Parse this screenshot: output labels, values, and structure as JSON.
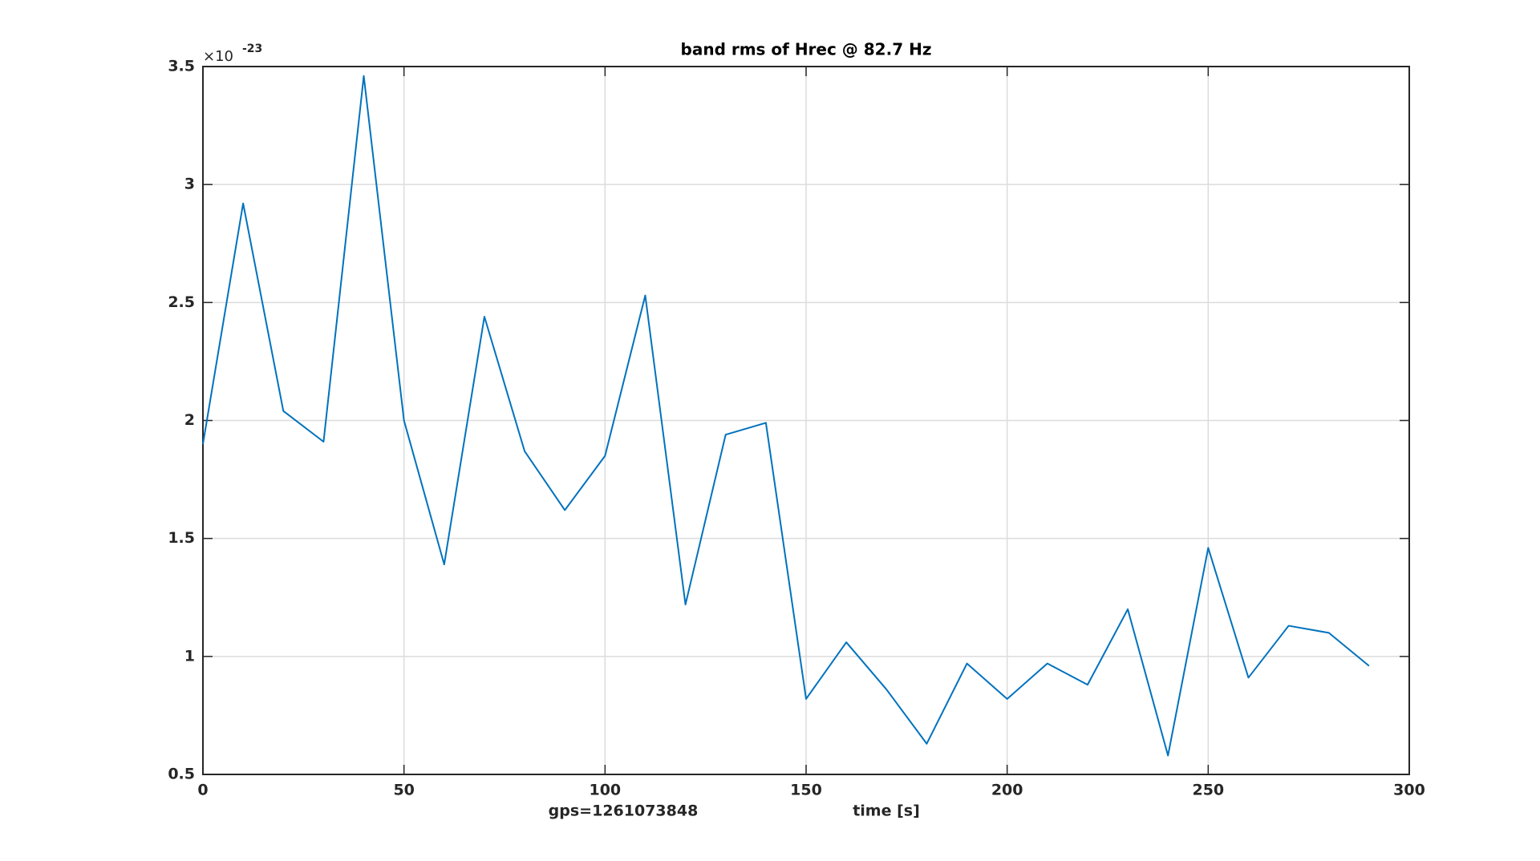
{
  "chart_data": {
    "type": "line",
    "title": "band rms of Hrec @ 82.7 Hz",
    "xlabel": "time [s]",
    "annotation": "gps=1261073848",
    "y_multiplier": {
      "base": "×10",
      "exponent": "-23"
    },
    "x": [
      0,
      10,
      20,
      30,
      40,
      50,
      60,
      70,
      80,
      90,
      100,
      110,
      120,
      130,
      140,
      150,
      160,
      170,
      180,
      190,
      200,
      210,
      220,
      230,
      240,
      250,
      260,
      270,
      280,
      290
    ],
    "series": [
      {
        "color": "#0072bd",
        "values": [
          1.9,
          2.92,
          2.04,
          1.91,
          3.46,
          2.0,
          1.39,
          2.44,
          1.87,
          1.62,
          1.85,
          2.53,
          1.22,
          1.94,
          1.99,
          0.82,
          1.06,
          0.86,
          0.63,
          0.97,
          0.82,
          0.97,
          0.88,
          1.2,
          0.58,
          1.46,
          0.91,
          1.13,
          1.1,
          0.96
        ]
      }
    ],
    "xlim": [
      0,
      300
    ],
    "xticks": [
      0,
      50,
      100,
      150,
      200,
      250,
      300
    ],
    "ylim": [
      0.5,
      3.5
    ],
    "yticks": [
      0.5,
      1,
      1.5,
      2,
      2.5,
      3,
      3.5
    ],
    "grid": true
  }
}
